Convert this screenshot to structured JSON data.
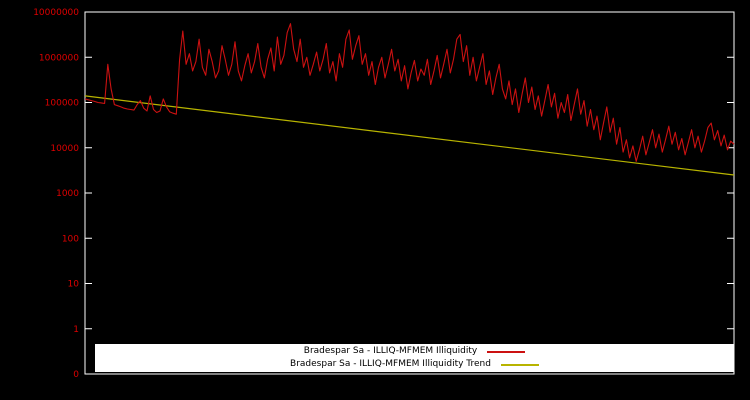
{
  "chart_data": {
    "type": "line",
    "title": "",
    "xlabel": "",
    "ylabel": "",
    "y_scale": "log",
    "grid": false,
    "yticks": [
      "10000000",
      "1000000",
      "100000",
      "10000",
      "1000",
      "100",
      "10",
      "1",
      "0"
    ],
    "ylim_exponents": [
      -1,
      7
    ],
    "legend_position": "bottom-center",
    "colors": {
      "background": "#000000",
      "border": "#ffffff",
      "axis_text": "#dd0000",
      "series": "#cc1111",
      "trend": "#b8b400",
      "legend_bg": "#ffffff",
      "legend_text": "#000000"
    },
    "series": [
      {
        "name": "Bradespar Sa - ILLIQ-MFMEM Illiquidity",
        "color_key": "series",
        "values": [
          120000,
          115000,
          110000,
          105000,
          100000,
          98000,
          95000,
          700000,
          200000,
          90000,
          85000,
          80000,
          75000,
          72000,
          70000,
          68000,
          90000,
          110000,
          75000,
          65000,
          140000,
          70000,
          60000,
          65000,
          120000,
          80000,
          62000,
          58000,
          55000,
          900000,
          3800000,
          700000,
          1200000,
          500000,
          800000,
          2500000,
          600000,
          400000,
          1500000,
          800000,
          350000,
          500000,
          1800000,
          900000,
          400000,
          700000,
          2200000,
          500000,
          300000,
          650000,
          1200000,
          450000,
          800000,
          2000000,
          600000,
          350000,
          900000,
          1600000,
          500000,
          2800000,
          700000,
          1100000,
          3500000,
          5500000,
          1500000,
          800000,
          2500000,
          600000,
          1000000,
          400000,
          700000,
          1300000,
          500000,
          900000,
          2000000,
          450000,
          800000,
          300000,
          1200000,
          600000,
          2500000,
          4000000,
          900000,
          1800000,
          3000000,
          700000,
          1200000,
          400000,
          800000,
          250000,
          600000,
          1000000,
          350000,
          700000,
          1500000,
          500000,
          900000,
          300000,
          650000,
          200000,
          450000,
          850000,
          300000,
          550000,
          400000,
          900000,
          250000,
          500000,
          1100000,
          350000,
          700000,
          1500000,
          450000,
          900000,
          2500000,
          3200000,
          800000,
          1800000,
          400000,
          1000000,
          300000,
          600000,
          1200000,
          250000,
          500000,
          150000,
          350000,
          700000,
          200000,
          120000,
          300000,
          90000,
          200000,
          60000,
          150000,
          350000,
          100000,
          220000,
          70000,
          140000,
          50000,
          110000,
          250000,
          80000,
          160000,
          45000,
          100000,
          60000,
          150000,
          40000,
          90000,
          200000,
          55000,
          110000,
          30000,
          70000,
          25000,
          50000,
          15000,
          35000,
          80000,
          22000,
          45000,
          12000,
          28000,
          8000,
          15000,
          6000,
          11000,
          5000,
          9000,
          18000,
          7000,
          13000,
          25000,
          10000,
          20000,
          8000,
          15000,
          30000,
          12000,
          22000,
          9000,
          16000,
          7000,
          13000,
          25000,
          10000,
          18000,
          8000,
          14000,
          28000,
          35000,
          15000,
          24000,
          11000,
          19000,
          9000,
          14000,
          12000
        ]
      },
      {
        "name": "Bradespar Sa - ILLIQ-MFMEM Illiquidity Trend",
        "color_key": "trend",
        "trend": {
          "start": 140000,
          "end": 2500
        }
      }
    ]
  }
}
